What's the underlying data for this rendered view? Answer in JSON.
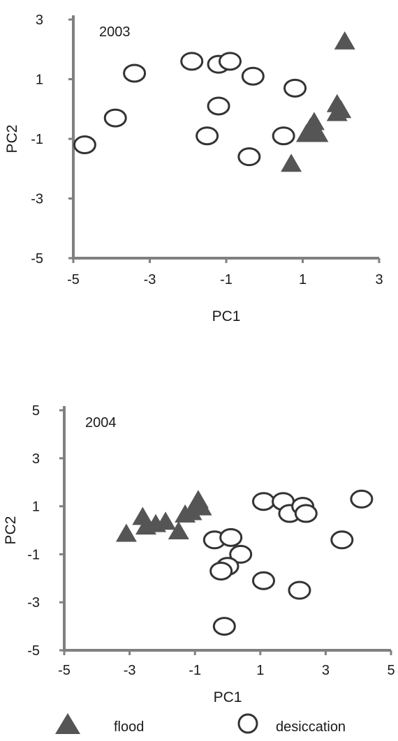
{
  "chart_data": [
    {
      "type": "scatter",
      "label": "2003",
      "xlabel": "PC1",
      "ylabel": "PC2",
      "xlim": [
        -5,
        3
      ],
      "ylim": [
        -5,
        3
      ],
      "xticks": [
        "-5",
        "-3",
        "-1",
        "1",
        "3"
      ],
      "yticks": [
        "3",
        "1",
        "-1",
        "-3",
        "-5"
      ],
      "grid": false,
      "series": [
        {
          "name": "flood",
          "marker": "triangle",
          "color": "#555555",
          "points": [
            {
              "x": 2.1,
              "y": 2.3
            },
            {
              "x": 1.9,
              "y": 0.2
            },
            {
              "x": 2.0,
              "y": 0.0
            },
            {
              "x": 1.9,
              "y": -0.1
            },
            {
              "x": 1.3,
              "y": -0.4
            },
            {
              "x": 1.2,
              "y": -0.6
            },
            {
              "x": 1.1,
              "y": -0.8
            },
            {
              "x": 1.4,
              "y": -0.8
            },
            {
              "x": 0.7,
              "y": -1.8
            }
          ]
        },
        {
          "name": "desiccation",
          "marker": "circle",
          "color": "#333333",
          "points": [
            {
              "x": -4.7,
              "y": -1.2
            },
            {
              "x": -3.9,
              "y": -0.3
            },
            {
              "x": -3.4,
              "y": 1.2
            },
            {
              "x": -1.9,
              "y": 1.6
            },
            {
              "x": -1.2,
              "y": 1.5
            },
            {
              "x": -0.9,
              "y": 1.6
            },
            {
              "x": -0.3,
              "y": 1.1
            },
            {
              "x": -1.2,
              "y": 0.1
            },
            {
              "x": -1.5,
              "y": -0.9
            },
            {
              "x": -0.4,
              "y": -1.6
            },
            {
              "x": 0.8,
              "y": 0.7
            },
            {
              "x": 0.5,
              "y": -0.9
            }
          ]
        }
      ]
    },
    {
      "type": "scatter",
      "label": "2004",
      "xlabel": "PC1",
      "ylabel": "PC2",
      "xlim": [
        -5,
        5
      ],
      "ylim": [
        -5,
        5
      ],
      "xticks": [
        "-5",
        "-3",
        "-1",
        "1",
        "3",
        "5"
      ],
      "yticks": [
        "5",
        "3",
        "1",
        "-1",
        "-3",
        "-5"
      ],
      "grid": false,
      "series": [
        {
          "name": "flood",
          "marker": "triangle",
          "color": "#555555",
          "points": [
            {
              "x": -3.1,
              "y": -0.1
            },
            {
              "x": -2.6,
              "y": 0.6
            },
            {
              "x": -2.5,
              "y": 0.2
            },
            {
              "x": -2.2,
              "y": 0.3
            },
            {
              "x": -1.9,
              "y": 0.4
            },
            {
              "x": -1.5,
              "y": 0.0
            },
            {
              "x": -1.3,
              "y": 0.7
            },
            {
              "x": -1.1,
              "y": 0.8
            },
            {
              "x": -0.9,
              "y": 1.3
            },
            {
              "x": -0.8,
              "y": 1.0
            }
          ]
        },
        {
          "name": "desiccation",
          "marker": "circle",
          "color": "#333333",
          "points": [
            {
              "x": -0.4,
              "y": -0.4
            },
            {
              "x": 0.1,
              "y": -0.3
            },
            {
              "x": 0.4,
              "y": -1.0
            },
            {
              "x": 0.0,
              "y": -1.5
            },
            {
              "x": -0.2,
              "y": -1.7
            },
            {
              "x": 1.1,
              "y": 1.2
            },
            {
              "x": 1.7,
              "y": 1.2
            },
            {
              "x": 1.9,
              "y": 0.7
            },
            {
              "x": 2.3,
              "y": 1.0
            },
            {
              "x": 2.4,
              "y": 0.7
            },
            {
              "x": 1.1,
              "y": -2.1
            },
            {
              "x": 2.2,
              "y": -2.5
            },
            {
              "x": 3.5,
              "y": -0.4
            },
            {
              "x": 4.1,
              "y": 1.3
            },
            {
              "x": -0.1,
              "y": -4.0
            }
          ]
        }
      ]
    }
  ],
  "legend": {
    "placement": "bottom",
    "items": [
      {
        "label": "flood",
        "marker": "triangle"
      },
      {
        "label": "desiccation",
        "marker": "circle"
      }
    ]
  },
  "colors": {
    "axis": "#808080",
    "triangle_fill": "#555555",
    "circle_stroke": "#333333"
  }
}
